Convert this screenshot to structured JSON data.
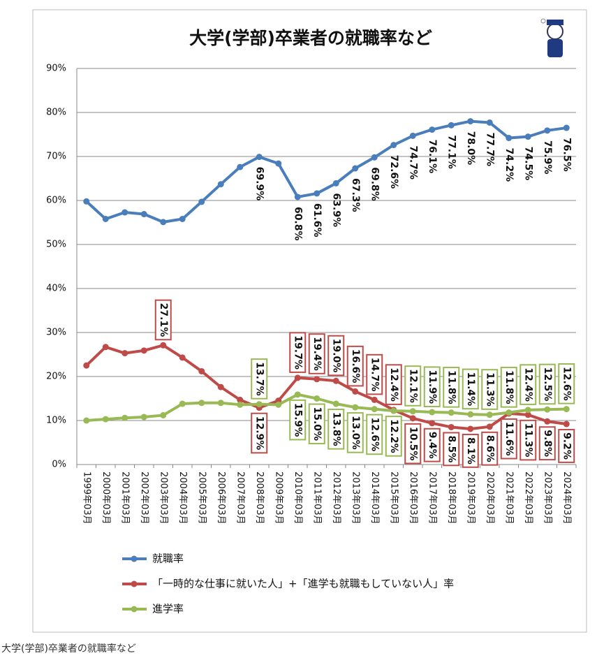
{
  "chart_data": {
    "type": "line",
    "title": "大学(学部)卒業者の就職率など",
    "categories": [
      "1999年03月",
      "2000年03月",
      "2001年03月",
      "2002年03月",
      "2003年03月",
      "2004年03月",
      "2005年03月",
      "2006年03月",
      "2007年03月",
      "2008年03月",
      "2009年03月",
      "2010年03月",
      "2011年03月",
      "2012年03月",
      "2013年03月",
      "2014年03月",
      "2015年03月",
      "2016年03月",
      "2017年03月",
      "2018年03月",
      "2019年03月",
      "2020年03月",
      "2021年03月",
      "2022年03月",
      "2023年03月",
      "2024年03月"
    ],
    "series": [
      {
        "name": "就職率",
        "color": "#4a7ebb",
        "values": [
          59.8,
          55.8,
          57.3,
          56.9,
          55.1,
          55.8,
          59.7,
          63.7,
          67.6,
          69.9,
          68.4,
          60.8,
          61.6,
          63.9,
          67.3,
          69.8,
          72.6,
          74.7,
          76.1,
          77.1,
          78.0,
          77.7,
          74.2,
          74.5,
          75.9,
          76.5
        ],
        "value_labels": [
          null,
          null,
          null,
          null,
          null,
          null,
          null,
          null,
          null,
          "69.9%",
          null,
          "60.8%",
          "61.6%",
          "63.9%",
          "67.3%",
          "69.8%",
          "72.6%",
          "74.7%",
          "76.1%",
          "77.1%",
          "78.0%",
          "77.7%",
          "74.2%",
          "74.5%",
          "75.9%",
          "76.5%"
        ]
      },
      {
        "name": "「一時的な仕事に就いた人」+「進学も就職もしていない人」率",
        "color": "#be4b48",
        "values": [
          22.5,
          26.7,
          25.3,
          25.9,
          27.1,
          24.3,
          21.2,
          17.6,
          14.7,
          12.9,
          14.5,
          19.7,
          19.4,
          19.0,
          16.6,
          14.7,
          12.4,
          10.5,
          9.4,
          8.5,
          8.1,
          8.6,
          11.6,
          11.3,
          9.8,
          9.2
        ],
        "value_labels": [
          null,
          null,
          null,
          null,
          "27.1%",
          null,
          null,
          null,
          null,
          "12.9%",
          null,
          "19.7%",
          "19.4%",
          "19.0%",
          "16.6%",
          "14.7%",
          "12.4%",
          "10.5%",
          "9.4%",
          "8.5%",
          "8.1%",
          "8.6%",
          "11.6%",
          "11.3%",
          "9.8%",
          "9.2%"
        ]
      },
      {
        "name": "進学率",
        "color": "#98b954",
        "values": [
          10.0,
          10.3,
          10.6,
          10.8,
          11.2,
          13.8,
          14.0,
          14.0,
          13.6,
          13.7,
          13.6,
          15.9,
          15.0,
          13.8,
          13.0,
          12.6,
          12.2,
          12.1,
          11.9,
          11.8,
          11.4,
          11.3,
          11.8,
          12.4,
          12.5,
          12.6
        ],
        "value_labels": [
          null,
          null,
          null,
          null,
          null,
          null,
          null,
          null,
          null,
          "13.7%",
          null,
          "15.9%",
          "15.0%",
          "13.8%",
          "13.0%",
          "12.6%",
          "12.2%",
          "12.1%",
          "11.9%",
          "11.8%",
          "11.4%",
          "11.3%",
          "11.8%",
          "12.4%",
          "12.5%",
          "12.6%"
        ]
      }
    ],
    "ylim": [
      0,
      90
    ],
    "yticks": [
      {
        "value": 0,
        "label": "0%"
      },
      {
        "value": 10,
        "label": "10%"
      },
      {
        "value": 20,
        "label": "20%"
      },
      {
        "value": 30,
        "label": "30%"
      },
      {
        "value": 40,
        "label": "40%"
      },
      {
        "value": 50,
        "label": "50%"
      },
      {
        "value": 60,
        "label": "60%"
      },
      {
        "value": 70,
        "label": "70%"
      },
      {
        "value": 80,
        "label": "80%"
      },
      {
        "value": 90,
        "label": "90%"
      }
    ],
    "grid": true
  },
  "caption": "大学(学部)卒業者の就職率など"
}
